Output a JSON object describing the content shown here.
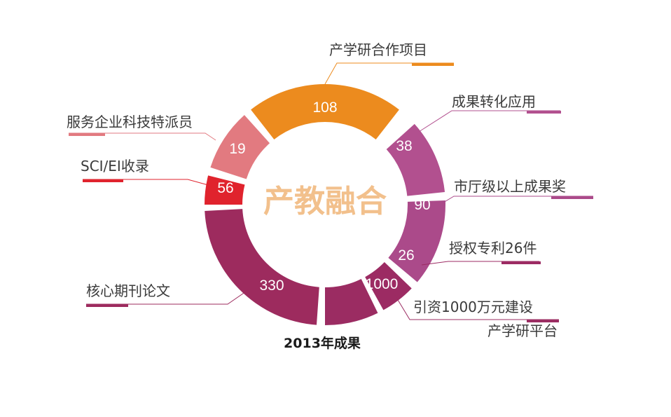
{
  "chart_data": {
    "type": "pie",
    "style": "donut",
    "center_title": "产教融合",
    "caption": "2013年成果",
    "segments": [
      {
        "label": "产学研合作项目",
        "value": "108",
        "color": "#ec8b1e"
      },
      {
        "label": "成果转化应用",
        "value": "38",
        "color": "#b2508f"
      },
      {
        "label": "市厅级以上成果奖",
        "value": "90",
        "color": "#ab4a8a"
      },
      {
        "label": "授权专利26件",
        "value": "26",
        "color": "#9c2b63"
      },
      {
        "label": "引资1000万元建设 产学研平台",
        "label_lines": [
          "引资1000万元建设",
          "产学研平台"
        ],
        "value": "1000",
        "color": "#9b2c62"
      },
      {
        "label": "核心期刊论文",
        "value": "330",
        "color": "#9d2b5e"
      },
      {
        "label": "SCI/EI收录",
        "value": "56",
        "color": "#e0232d"
      },
      {
        "label": "服务企业科技特派员",
        "value": "19",
        "color": "#e27a80"
      }
    ]
  }
}
